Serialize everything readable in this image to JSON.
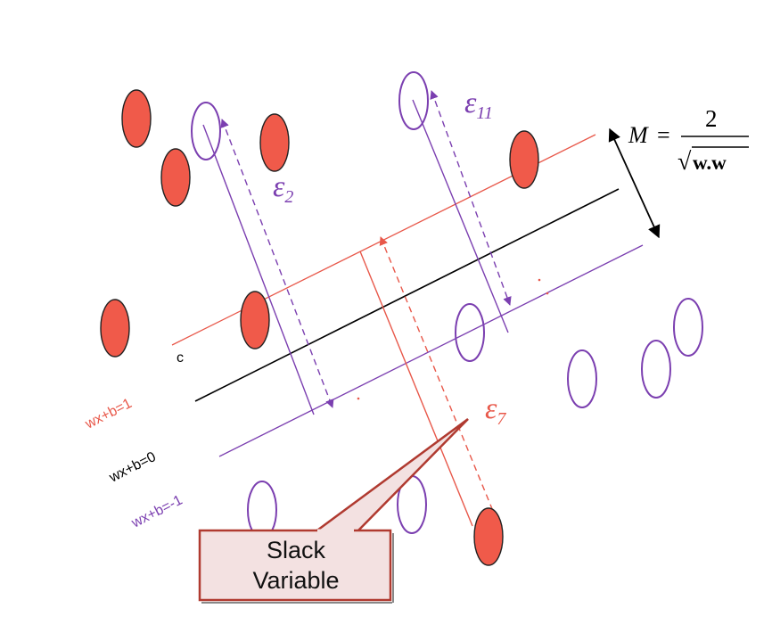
{
  "labels": {
    "margin_symbol": "M",
    "margin_equals": "=",
    "margin_numerator": "2",
    "margin_denominator_root": "√",
    "margin_denominator": "w.w",
    "eps2_symbol": "ε",
    "eps2_sub": "2",
    "eps11_symbol": "ε",
    "eps11_sub": "11",
    "eps7_symbol": "ε",
    "eps7_sub": "7",
    "point_c": "c",
    "plane_pos": "wx+b=1",
    "plane_zero": "wx+b=0",
    "plane_neg": "wx+b=-1",
    "callout_line1": "Slack",
    "callout_line2": "Variable"
  },
  "colors": {
    "red_point_fill": "#f05a4a",
    "red_line": "#e8584a",
    "purple": "#7b3fb0",
    "black": "#000000",
    "callout_fill": "#f3e1e1",
    "callout_border": "#b03a30"
  }
}
